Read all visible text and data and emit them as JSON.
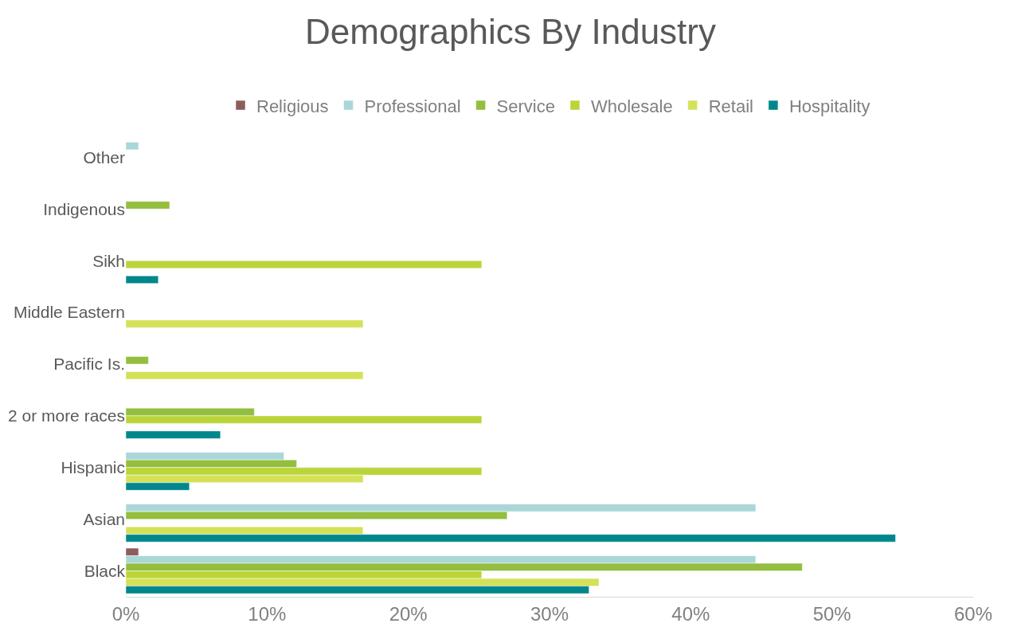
{
  "chart_data": {
    "type": "bar",
    "orientation": "horizontal",
    "title": "Demographics By Industry",
    "categories": [
      "Other",
      "Indigenous",
      "Sikh",
      "Middle Eastern",
      "Pacific Is.",
      "2 or more races",
      "Hispanic",
      "Asian",
      "Black"
    ],
    "series": [
      {
        "name": "Religious",
        "color": "#8c5d5d",
        "values": [
          null,
          null,
          null,
          null,
          null,
          null,
          null,
          null,
          0.9
        ]
      },
      {
        "name": "Professional",
        "color": "#a9d7d8",
        "values": [
          0.9,
          null,
          null,
          null,
          null,
          null,
          11.2,
          44.6,
          44.6
        ]
      },
      {
        "name": "Service",
        "color": "#93be3e",
        "values": [
          null,
          3.1,
          null,
          null,
          1.6,
          9.1,
          12.1,
          27.0,
          47.9
        ]
      },
      {
        "name": "Wholesale",
        "color": "#bad53a",
        "values": [
          null,
          null,
          25.2,
          null,
          null,
          25.2,
          25.2,
          null,
          25.2
        ]
      },
      {
        "name": "Retail",
        "color": "#d4e157",
        "values": [
          null,
          null,
          null,
          16.8,
          16.8,
          null,
          16.8,
          16.8,
          33.5
        ]
      },
      {
        "name": "Hospitality",
        "color": "#00878b",
        "values": [
          null,
          null,
          2.3,
          null,
          null,
          6.7,
          4.5,
          54.5,
          32.8
        ]
      }
    ],
    "xlim": [
      0,
      60
    ],
    "xticks": [
      {
        "value": 0,
        "label": "0%"
      },
      {
        "value": 10,
        "label": "10%"
      },
      {
        "value": 20,
        "label": "20%"
      },
      {
        "value": 30,
        "label": "30%"
      },
      {
        "value": 40,
        "label": "40%"
      },
      {
        "value": 50,
        "label": "50%"
      },
      {
        "value": 60,
        "label": "60%"
      }
    ],
    "grid": false,
    "legend": "top"
  }
}
